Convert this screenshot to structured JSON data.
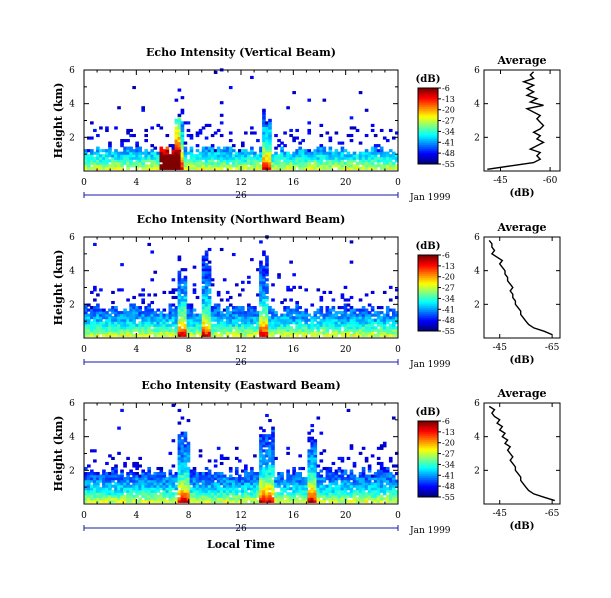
{
  "chart_data": [
    {
      "type": "heatmap",
      "title": "Echo Intensity (Vertical Beam)",
      "ylabel": "Height (km)",
      "xticks": [
        "0",
        "4",
        "8",
        "12",
        "16",
        "20",
        "0"
      ],
      "xlim": [
        0,
        24
      ],
      "yticks": [
        "2",
        "4",
        "6"
      ],
      "ylim": [
        0,
        6
      ],
      "date_label": "26",
      "month_label": "Jan 1999",
      "colorbar": {
        "unit": "(dB)",
        "ticks": [
          "-6",
          "-13",
          "-20",
          "-27",
          "-34",
          "-41",
          "-48",
          "-55"
        ],
        "range": [
          -55,
          -6
        ]
      },
      "features": [
        {
          "x_range": [
            0,
            24
          ],
          "height_top": 1.3,
          "note": "continuous low-level echo layer"
        },
        {
          "x_range": [
            6.8,
            7.6
          ],
          "height_top": 3.2
        },
        {
          "x_range": [
            13.6,
            14.1
          ],
          "height_top": 3.2
        },
        {
          "x_range": [
            5.7,
            7.3
          ],
          "height_top": 0.6,
          "peak_db": -6
        }
      ],
      "average": {
        "title": "Average",
        "xlabel": "(dB)",
        "xticks": [
          "-45",
          "-60"
        ],
        "xlim": [
          -40,
          -63
        ],
        "ylim": [
          0,
          6
        ],
        "yticks": [
          "2",
          "4",
          "6"
        ],
        "points": [
          [
            0.1,
            -41
          ],
          [
            0.3,
            -48
          ],
          [
            0.5,
            -55
          ],
          [
            0.7,
            -57
          ],
          [
            0.9,
            -56
          ],
          [
            1.1,
            -57
          ],
          [
            1.3,
            -54
          ],
          [
            1.5,
            -56
          ],
          [
            1.7,
            -58
          ],
          [
            1.9,
            -56
          ],
          [
            2.1,
            -57
          ],
          [
            2.3,
            -55
          ],
          [
            2.5,
            -57
          ],
          [
            2.7,
            -58
          ],
          [
            2.9,
            -57
          ],
          [
            3.1,
            -56
          ],
          [
            3.3,
            -57
          ],
          [
            3.5,
            -55
          ],
          [
            3.7,
            -53
          ],
          [
            3.9,
            -58
          ],
          [
            4.1,
            -54
          ],
          [
            4.3,
            -56
          ],
          [
            4.5,
            -53
          ],
          [
            4.7,
            -55
          ],
          [
            4.9,
            -53
          ],
          [
            5.1,
            -55
          ],
          [
            5.3,
            -52
          ],
          [
            5.5,
            -55
          ],
          [
            5.7,
            -54
          ],
          [
            5.9,
            -55
          ]
        ]
      }
    },
    {
      "type": "heatmap",
      "title": "Echo Intensity (Northward Beam)",
      "ylabel": "Height (km)",
      "xticks": [
        "0",
        "4",
        "8",
        "12",
        "16",
        "20",
        "0"
      ],
      "xlim": [
        0,
        24
      ],
      "yticks": [
        "2",
        "4",
        "6"
      ],
      "ylim": [
        0,
        6
      ],
      "date_label": "26",
      "month_label": "Jan 1999",
      "colorbar": {
        "unit": "(dB)",
        "ticks": [
          "-6",
          "-13",
          "-20",
          "-27",
          "-34",
          "-41",
          "-48",
          "-55"
        ],
        "range": [
          -55,
          -6
        ]
      },
      "features": [
        {
          "x_range": [
            0,
            24
          ],
          "height_top": 1.8,
          "note": "low-level echo layer"
        },
        {
          "x_range": [
            7.0,
            7.8
          ],
          "height_top": 4.2
        },
        {
          "x_range": [
            9.0,
            9.5
          ],
          "height_top": 5.0
        },
        {
          "x_range": [
            13.4,
            14.0
          ],
          "height_top": 4.6
        }
      ],
      "average": {
        "title": "Average",
        "xlabel": "(dB)",
        "xticks": [
          "-45",
          "-65"
        ],
        "xlim": [
          -39,
          -68
        ],
        "ylim": [
          0,
          6
        ],
        "yticks": [
          "2",
          "4",
          "6"
        ],
        "points": [
          [
            0.2,
            -65
          ],
          [
            0.4,
            -62
          ],
          [
            0.6,
            -58
          ],
          [
            0.8,
            -56
          ],
          [
            1.0,
            -55
          ],
          [
            1.2,
            -54
          ],
          [
            1.4,
            -53
          ],
          [
            1.6,
            -53
          ],
          [
            1.8,
            -52
          ],
          [
            2.0,
            -51
          ],
          [
            2.2,
            -51
          ],
          [
            2.4,
            -50
          ],
          [
            2.6,
            -50
          ],
          [
            2.8,
            -49
          ],
          [
            3.0,
            -50
          ],
          [
            3.2,
            -49
          ],
          [
            3.4,
            -48
          ],
          [
            3.6,
            -48
          ],
          [
            3.8,
            -47
          ],
          [
            4.0,
            -47
          ],
          [
            4.2,
            -46
          ],
          [
            4.4,
            -45
          ],
          [
            4.6,
            -46
          ],
          [
            4.8,
            -44
          ],
          [
            5.0,
            -42
          ],
          [
            5.2,
            -43
          ],
          [
            5.4,
            -42
          ],
          [
            5.6,
            -42
          ],
          [
            5.8,
            -41
          ]
        ]
      }
    },
    {
      "type": "heatmap",
      "title": "Echo Intensity (Eastward Beam)",
      "ylabel": "Height (km)",
      "xlabel": "Local Time",
      "xticks": [
        "0",
        "4",
        "8",
        "12",
        "16",
        "20",
        "0"
      ],
      "xlim": [
        0,
        24
      ],
      "yticks": [
        "2",
        "4",
        "6"
      ],
      "ylim": [
        0,
        6
      ],
      "date_label": "26",
      "month_label": "Jan 1999",
      "colorbar": {
        "unit": "(dB)",
        "ticks": [
          "-6",
          "-13",
          "-20",
          "-27",
          "-34",
          "-41",
          "-48",
          "-55"
        ],
        "range": [
          -55,
          -6
        ]
      },
      "features": [
        {
          "x_range": [
            0,
            24
          ],
          "height_top": 2.0,
          "note": "low-level echo layer"
        },
        {
          "x_range": [
            7.0,
            8.0
          ],
          "height_top": 4.2
        },
        {
          "x_range": [
            13.4,
            14.4
          ],
          "height_top": 4.6
        },
        {
          "x_range": [
            17.0,
            17.6
          ],
          "height_top": 3.6
        }
      ],
      "average": {
        "title": "Average",
        "xlabel": "(dB)",
        "xticks": [
          "-45",
          "-65"
        ],
        "xlim": [
          -39,
          -68
        ],
        "ylim": [
          0,
          6
        ],
        "yticks": [
          "2",
          "4",
          "6"
        ],
        "points": [
          [
            0.2,
            -66
          ],
          [
            0.4,
            -62
          ],
          [
            0.6,
            -58
          ],
          [
            0.8,
            -56
          ],
          [
            1.0,
            -55
          ],
          [
            1.2,
            -54
          ],
          [
            1.4,
            -53
          ],
          [
            1.6,
            -53
          ],
          [
            1.8,
            -52
          ],
          [
            2.0,
            -51
          ],
          [
            2.2,
            -51
          ],
          [
            2.4,
            -50
          ],
          [
            2.6,
            -49
          ],
          [
            2.8,
            -50
          ],
          [
            3.0,
            -49
          ],
          [
            3.2,
            -48
          ],
          [
            3.4,
            -49
          ],
          [
            3.6,
            -47
          ],
          [
            3.8,
            -48
          ],
          [
            4.0,
            -46
          ],
          [
            4.2,
            -47
          ],
          [
            4.4,
            -45
          ],
          [
            4.6,
            -46
          ],
          [
            4.8,
            -44
          ],
          [
            5.0,
            -45
          ],
          [
            5.2,
            -43
          ],
          [
            5.4,
            -42
          ],
          [
            5.6,
            -43
          ],
          [
            5.8,
            -41
          ]
        ]
      }
    }
  ]
}
